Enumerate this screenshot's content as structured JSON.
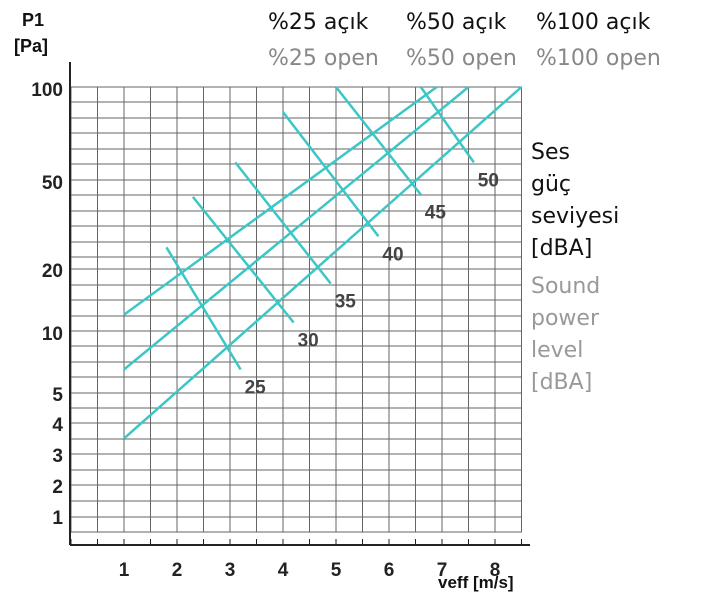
{
  "chart_data": {
    "type": "line",
    "y_axis_title": [
      "P1",
      "[Pa]"
    ],
    "x_axis_title": "veff [m/s]",
    "y_tick_labels": [
      "100",
      "50",
      "20",
      "10",
      "5",
      "4",
      "3",
      "2",
      "1"
    ],
    "x_tick_labels": [
      "1",
      "2",
      "3",
      "4",
      "5",
      "6",
      "7",
      "8"
    ],
    "legend": {
      "turkish": [
        "%25 açık",
        "%50 açık",
        "%100 açık"
      ],
      "english": [
        "%25 open",
        "%50 open",
        "%100 open"
      ]
    },
    "side_label_turkish": [
      "Ses",
      "güç",
      "seviyesi",
      "[dBA]"
    ],
    "side_label_english": [
      "Sound",
      "power",
      "level",
      "[dBA]"
    ],
    "sound_levels": [
      "25",
      "30",
      "35",
      "40",
      "45",
      "50"
    ],
    "series": [
      {
        "name": "%25 açık",
        "x": [
          1.0,
          6.9
        ],
        "y": [
          12,
          100
        ]
      },
      {
        "name": "%50 açık",
        "x": [
          1.0,
          7.5
        ],
        "y": [
          6.5,
          100
        ]
      },
      {
        "name": "%100 açık",
        "x": [
          1.0,
          8.5
        ],
        "y": [
          3.5,
          100
        ]
      }
    ],
    "sound_level_lines": [
      {
        "level": "25",
        "x": [
          1.8,
          3.2
        ],
        "y": [
          25,
          6.5
        ]
      },
      {
        "level": "30",
        "x": [
          2.3,
          4.2
        ],
        "y": [
          42,
          11
        ]
      },
      {
        "level": "35",
        "x": [
          3.1,
          4.9
        ],
        "y": [
          57,
          17
        ]
      },
      {
        "level": "40",
        "x": [
          4.0,
          5.8
        ],
        "y": [
          83,
          28
        ]
      },
      {
        "level": "45",
        "x": [
          5.0,
          6.6
        ],
        "y": [
          100,
          43
        ]
      },
      {
        "level": "50",
        "x": [
          6.6,
          7.6
        ],
        "y": [
          100,
          57
        ]
      }
    ],
    "line_color": "#3cc6c6",
    "grid_color": "#666666",
    "grid": true
  }
}
